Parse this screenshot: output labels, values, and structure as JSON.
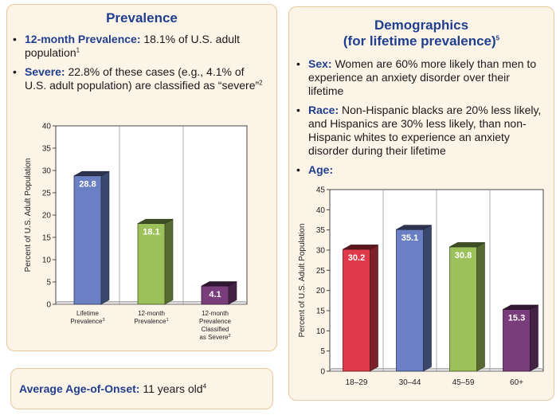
{
  "prevalence_panel": {
    "title": "Prevalence",
    "bullets": [
      {
        "lead": "12-month Prevalence:",
        "text": " 18.1% of U.S. adult population",
        "sup": "1"
      },
      {
        "lead": "Severe:",
        "text": " 22.8% of these cases (e.g., 4.1% of U.S. adult population) are classified as “severe”",
        "sup": "2"
      }
    ]
  },
  "demographics_panel": {
    "title_line1": "Demographics",
    "title_line2": "(for lifetime prevalence)",
    "title_sup": "5",
    "bullets": [
      {
        "lead": "Sex:",
        "text": " Women are 60% more likely than men to experience an anxiety disorder over their lifetime"
      },
      {
        "lead": "Race:",
        "text": " Non-Hispanic blacks are 20% less likely, and Hispanics are 30% less likely, than non-Hispanic whites to experience an anxiety disorder during their lifetime"
      },
      {
        "lead": "Age:",
        "text": ""
      }
    ]
  },
  "onset_panel": {
    "lead": "Average Age-of-Onset:",
    "text": " 11 years old",
    "sup": "4"
  },
  "chart_data": [
    {
      "type": "bar",
      "ylabel": "Percent of U.S. Adult Population",
      "ylim": [
        0,
        40
      ],
      "yticks": [
        0,
        5,
        10,
        15,
        20,
        25,
        30,
        35,
        40
      ],
      "grid": false,
      "categories": [
        [
          "Lifetime",
          "Prevalence|3"
        ],
        [
          "12-month",
          "Prevalence|1"
        ],
        [
          "12-month",
          "Prevalence",
          "Classified",
          "as Severe|2"
        ]
      ],
      "values": [
        28.8,
        18.1,
        4.1
      ],
      "labels": [
        "28.8",
        "18.1",
        "4.1"
      ],
      "colors": [
        "#6b7fc4",
        "#9dc15a",
        "#7a3d7c"
      ]
    },
    {
      "type": "bar",
      "ylabel": "Percent of U.S. Adult Population",
      "ylim": [
        0,
        45
      ],
      "yticks": [
        0,
        5,
        10,
        15,
        20,
        25,
        30,
        35,
        40,
        45
      ],
      "grid": false,
      "categories": [
        [
          "18–29"
        ],
        [
          "30–44"
        ],
        [
          "45–59"
        ],
        [
          "60+"
        ]
      ],
      "values": [
        30.2,
        35.1,
        30.8,
        15.3
      ],
      "labels": [
        "30.2",
        "35.1",
        "30.8",
        "15.3"
      ],
      "colors": [
        "#e03a4a",
        "#6b7fc4",
        "#9dc15a",
        "#7a3d7c"
      ]
    }
  ]
}
